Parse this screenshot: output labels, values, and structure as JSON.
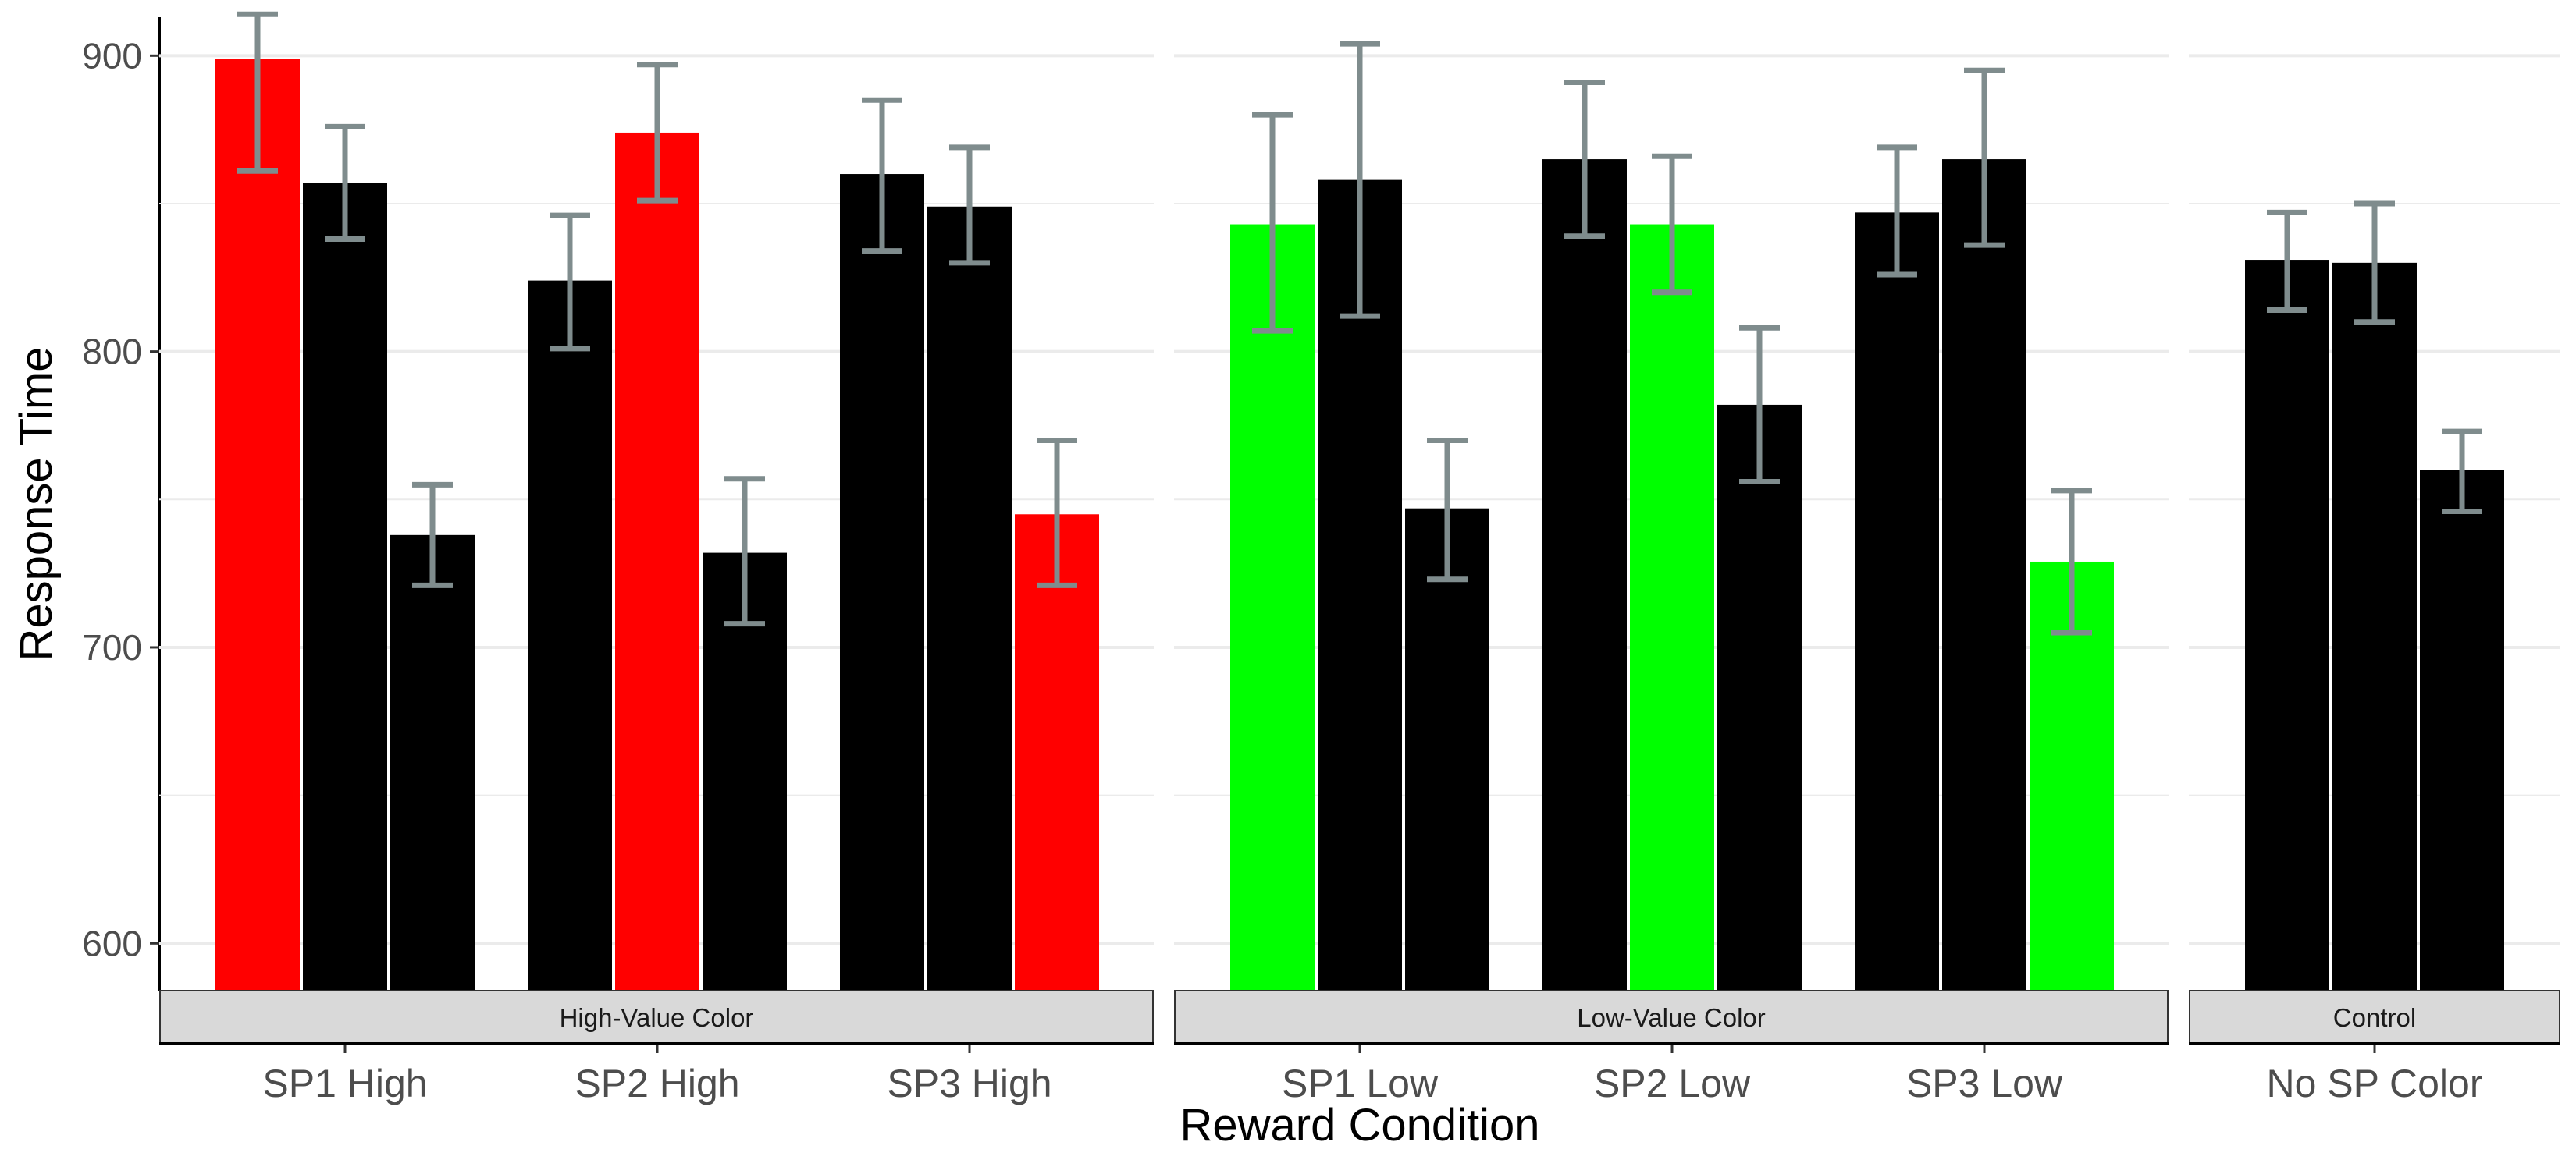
{
  "chart_data": {
    "type": "bar",
    "xlabel": "Reward Condition",
    "ylabel": "Response Time",
    "ylim": [
      584,
      913
    ],
    "yticks": [
      600,
      700,
      800,
      900
    ],
    "grid": true,
    "legend": "none",
    "colors": {
      "black": "#000000",
      "red": "#ff0000",
      "green": "#00ff00",
      "errorbar": "#7f8c8d",
      "strip": "#d9d9d9",
      "grid": "#ebebeb"
    },
    "panels": [
      {
        "strip": "High-Value Color",
        "groups": [
          {
            "label": "SP1 High",
            "bars": [
              {
                "value": 899,
                "lo": 861,
                "hi": 914,
                "color": "red"
              },
              {
                "value": 857,
                "lo": 838,
                "hi": 876,
                "color": "black"
              },
              {
                "value": 738,
                "lo": 721,
                "hi": 755,
                "color": "black"
              }
            ]
          },
          {
            "label": "SP2 High",
            "bars": [
              {
                "value": 824,
                "lo": 801,
                "hi": 846,
                "color": "black"
              },
              {
                "value": 874,
                "lo": 851,
                "hi": 897,
                "color": "red"
              },
              {
                "value": 732,
                "lo": 708,
                "hi": 757,
                "color": "black"
              }
            ]
          },
          {
            "label": "SP3 High",
            "bars": [
              {
                "value": 860,
                "lo": 834,
                "hi": 885,
                "color": "black"
              },
              {
                "value": 849,
                "lo": 830,
                "hi": 869,
                "color": "black"
              },
              {
                "value": 745,
                "lo": 721,
                "hi": 770,
                "color": "red"
              }
            ]
          }
        ]
      },
      {
        "strip": "Low-Value Color",
        "groups": [
          {
            "label": "SP1 Low",
            "bars": [
              {
                "value": 843,
                "lo": 807,
                "hi": 880,
                "color": "green"
              },
              {
                "value": 858,
                "lo": 812,
                "hi": 904,
                "color": "black"
              },
              {
                "value": 747,
                "lo": 723,
                "hi": 770,
                "color": "black"
              }
            ]
          },
          {
            "label": "SP2 Low",
            "bars": [
              {
                "value": 865,
                "lo": 839,
                "hi": 891,
                "color": "black"
              },
              {
                "value": 843,
                "lo": 820,
                "hi": 866,
                "color": "green"
              },
              {
                "value": 782,
                "lo": 756,
                "hi": 808,
                "color": "black"
              }
            ]
          },
          {
            "label": "SP3 Low",
            "bars": [
              {
                "value": 847,
                "lo": 826,
                "hi": 869,
                "color": "black"
              },
              {
                "value": 865,
                "lo": 836,
                "hi": 895,
                "color": "black"
              },
              {
                "value": 729,
                "lo": 705,
                "hi": 753,
                "color": "green"
              }
            ]
          }
        ]
      },
      {
        "strip": "Control",
        "groups": [
          {
            "label": "No SP Color",
            "bars": [
              {
                "value": 831,
                "lo": 814,
                "hi": 847,
                "color": "black"
              },
              {
                "value": 830,
                "lo": 810,
                "hi": 850,
                "color": "black"
              },
              {
                "value": 760,
                "lo": 746,
                "hi": 773,
                "color": "black"
              }
            ]
          }
        ]
      }
    ]
  }
}
